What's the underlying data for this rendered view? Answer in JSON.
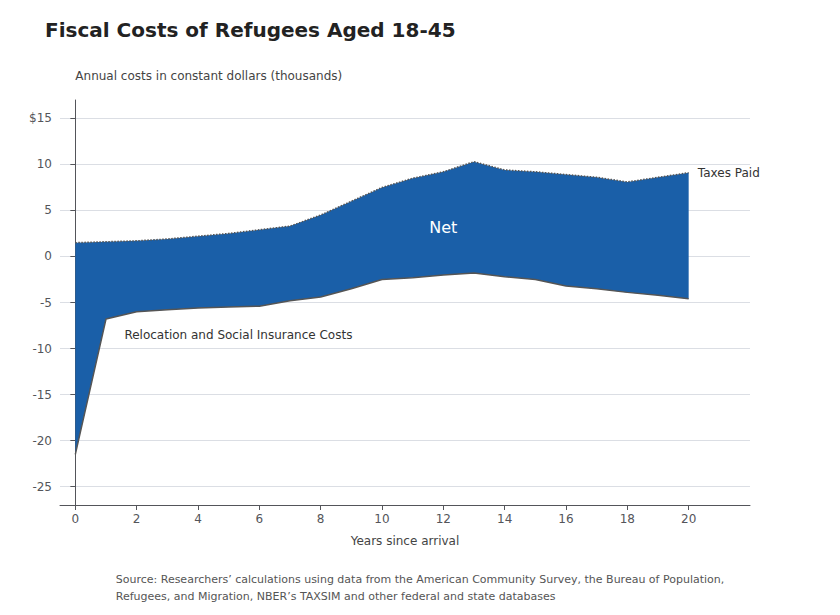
{
  "chart_data": {
    "type": "area",
    "title": "Fiscal Costs of Refugees Aged 18-45",
    "y_label": "Annual costs in constant dollars (thousands)",
    "x_label": "Years since arrival",
    "source": "Source: Researchers’ calculations using data from the American Community Survey, the Bureau of Population,\nRefugees, and Migration, NBER’s TAXSIM and other federal and state databases",
    "x": [
      0,
      1,
      2,
      3,
      4,
      5,
      6,
      7,
      8,
      9,
      10,
      11,
      12,
      13,
      14,
      15,
      16,
      17,
      18,
      19,
      20
    ],
    "series": [
      {
        "values": [
          1.5,
          1.6,
          1.7,
          1.9,
          2.2,
          2.5,
          2.9,
          3.3,
          4.5,
          6.0,
          7.5,
          8.5,
          9.2,
          10.3,
          9.4,
          9.2,
          8.9,
          8.6,
          8.1,
          8.6,
          9.1
        ],
        "line_style": "dotted",
        "color": "#555555"
      },
      {
        "values": [
          -21.5,
          -6.8,
          -6.0,
          -5.8,
          -5.6,
          -5.5,
          -5.4,
          -4.8,
          -4.4,
          -3.5,
          -2.5,
          -2.3,
          -2.0,
          -1.8,
          -2.2,
          -2.5,
          -3.2,
          -3.5,
          -3.9,
          -4.2,
          -4.6
        ],
        "line_style": "solid",
        "color": "#555555"
      }
    ],
    "color": "#1a5fa8",
    "annotations": [
      {
        "text": "Net",
        "x": 12,
        "y": 3.2
      },
      {
        "text": "Taxes Paid",
        "x": 20.3,
        "y": 9.1
      },
      {
        "text": "Relocation and Social Insurance Costs",
        "x": 1.6,
        "y": -8.5
      }
    ],
    "xlim": [
      -0.5,
      22
    ],
    "xticks": [
      0,
      2,
      4,
      6,
      8,
      10,
      12,
      14,
      16,
      18,
      20
    ],
    "ylim": [
      -27,
      17
    ],
    "yticks": [
      -25,
      -20,
      -15,
      -10,
      -5,
      0,
      5,
      10,
      {
        "value": 15,
        "label": "$15"
      }
    ],
    "grid": true
  }
}
